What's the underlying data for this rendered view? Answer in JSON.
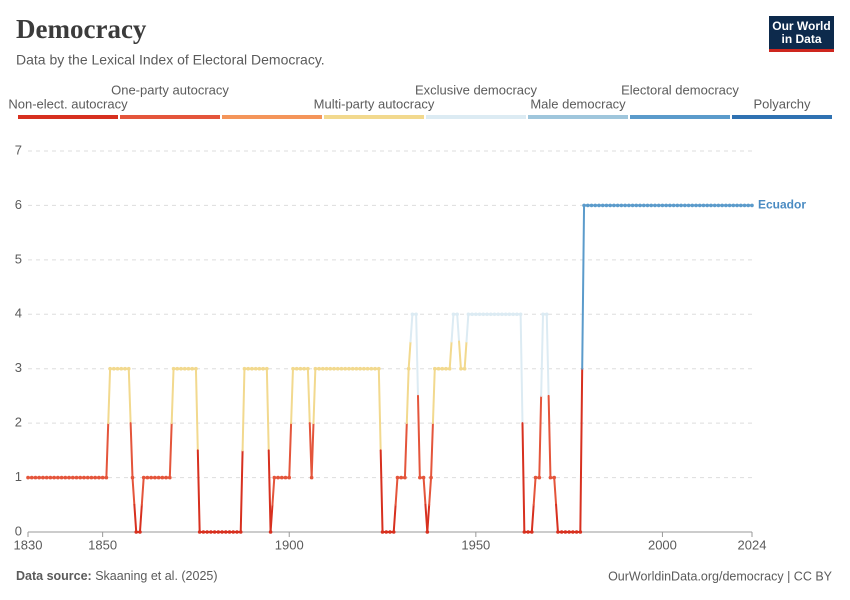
{
  "chart_data": {
    "type": "line",
    "title": "Democracy",
    "subtitle": "Data by the Lexical Index of Electoral Democracy.",
    "logo": [
      "Our World",
      "in Data"
    ],
    "source_label": "Data source:",
    "source": "Skaaning et al. (2025)",
    "url": "OurWorldinData.org/democracy | CC BY",
    "legend": {
      "labels": [
        "Non-elect. autocracy",
        "One-party autocracy",
        null,
        "Multi-party autocracy",
        "Exclusive democracy",
        "Male democracy",
        "Electoral democracy",
        "Polyarchy"
      ],
      "colors": [
        "#d7301f",
        "#e4553b",
        "#f4955a",
        "#f2d98e",
        "#dcebf3",
        "#9fc6dc",
        "#5b9bcb",
        "#2f72b2"
      ]
    },
    "xlim": [
      1830,
      2024
    ],
    "xticks": [
      1830,
      1850,
      1900,
      1950,
      2000,
      2024
    ],
    "ylim": [
      0,
      7
    ],
    "yticks": [
      0,
      1,
      2,
      3,
      4,
      5,
      6,
      7
    ],
    "grid": true,
    "series": [
      {
        "name": "Ecuador",
        "color": "#4a8bc2",
        "x": [
          1830,
          1831,
          1832,
          1833,
          1834,
          1835,
          1836,
          1837,
          1838,
          1839,
          1840,
          1841,
          1842,
          1843,
          1844,
          1845,
          1846,
          1847,
          1848,
          1849,
          1850,
          1851,
          1852,
          1853,
          1854,
          1855,
          1856,
          1857,
          1858,
          1859,
          1860,
          1861,
          1862,
          1863,
          1864,
          1865,
          1866,
          1867,
          1868,
          1869,
          1870,
          1871,
          1872,
          1873,
          1874,
          1875,
          1876,
          1877,
          1878,
          1879,
          1880,
          1881,
          1882,
          1883,
          1884,
          1885,
          1886,
          1887,
          1888,
          1889,
          1890,
          1891,
          1892,
          1893,
          1894,
          1895,
          1896,
          1897,
          1898,
          1899,
          1900,
          1901,
          1902,
          1903,
          1904,
          1905,
          1906,
          1907,
          1908,
          1909,
          1910,
          1911,
          1912,
          1913,
          1914,
          1915,
          1916,
          1917,
          1918,
          1919,
          1920,
          1921,
          1922,
          1923,
          1924,
          1925,
          1926,
          1927,
          1928,
          1929,
          1930,
          1931,
          1932,
          1933,
          1934,
          1935,
          1936,
          1937,
          1938,
          1939,
          1940,
          1941,
          1942,
          1943,
          1944,
          1945,
          1946,
          1947,
          1948,
          1949,
          1950,
          1951,
          1952,
          1953,
          1954,
          1955,
          1956,
          1957,
          1958,
          1959,
          1960,
          1961,
          1962,
          1963,
          1964,
          1965,
          1966,
          1967,
          1968,
          1969,
          1970,
          1971,
          1972,
          1973,
          1974,
          1975,
          1976,
          1977,
          1978,
          1979,
          1980,
          1981,
          1982,
          1983,
          1984,
          1985,
          1986,
          1987,
          1988,
          1989,
          1990,
          1991,
          1992,
          1993,
          1994,
          1995,
          1996,
          1997,
          1998,
          1999,
          2000,
          2001,
          2002,
          2003,
          2004,
          2005,
          2006,
          2007,
          2008,
          2009,
          2010,
          2011,
          2012,
          2013,
          2014,
          2015,
          2016,
          2017,
          2018,
          2019,
          2020,
          2021,
          2022,
          2023,
          2024
        ],
        "values": [
          1,
          1,
          1,
          1,
          1,
          1,
          1,
          1,
          1,
          1,
          1,
          1,
          1,
          1,
          1,
          1,
          1,
          1,
          1,
          1,
          1,
          1,
          3,
          3,
          3,
          3,
          3,
          3,
          1,
          0,
          0,
          1,
          1,
          1,
          1,
          1,
          1,
          1,
          1,
          3,
          3,
          3,
          3,
          3,
          3,
          3,
          0,
          0,
          0,
          0,
          0,
          0,
          0,
          0,
          0,
          0,
          0,
          0,
          3,
          3,
          3,
          3,
          3,
          3,
          3,
          0,
          1,
          1,
          1,
          1,
          1,
          3,
          3,
          3,
          3,
          3,
          1,
          3,
          3,
          3,
          3,
          3,
          3,
          3,
          3,
          3,
          3,
          3,
          3,
          3,
          3,
          3,
          3,
          3,
          3,
          0,
          0,
          0,
          0,
          1,
          1,
          1,
          3,
          4,
          4,
          1,
          1,
          0,
          1,
          3,
          3,
          3,
          3,
          3,
          4,
          4,
          3,
          3,
          4,
          4,
          4,
          4,
          4,
          4,
          4,
          4,
          4,
          4,
          4,
          4,
          4,
          4,
          4,
          0,
          0,
          0,
          1,
          1,
          4,
          4,
          1,
          1,
          0,
          0,
          0,
          0,
          0,
          0,
          0,
          6,
          6,
          6,
          6,
          6,
          6,
          6,
          6,
          6,
          6,
          6,
          6,
          6,
          6,
          6,
          6,
          6,
          6,
          6,
          6,
          6,
          6,
          6,
          6,
          6,
          6,
          6,
          6,
          6,
          6,
          6,
          6,
          6,
          6,
          6,
          6,
          6,
          6,
          6,
          6,
          6,
          6,
          6,
          6,
          6,
          6
        ]
      }
    ]
  }
}
